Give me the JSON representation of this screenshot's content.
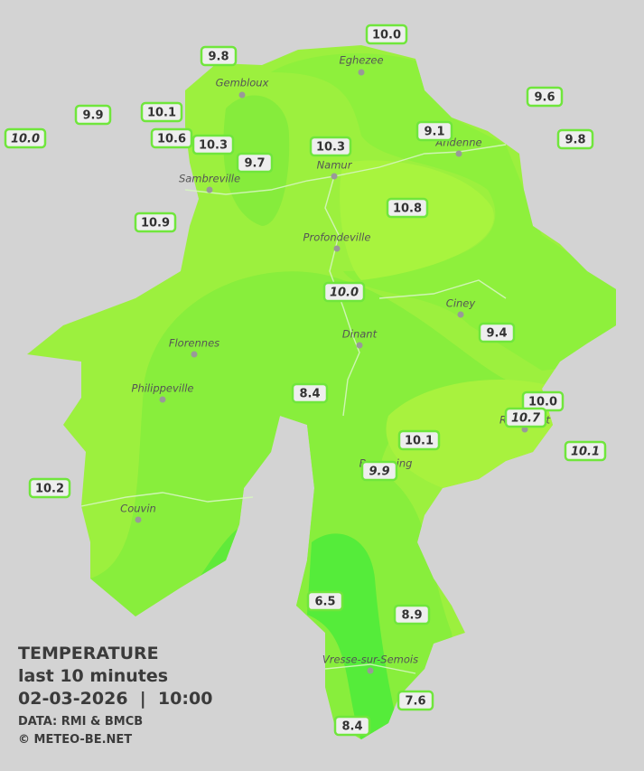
{
  "legend": {
    "title": "TEMPERATURE",
    "period": "last 10 minutes",
    "datetime": "02-03-2026  |  10:00",
    "source": "DATA: RMI & BMCB",
    "copyright": "© METEO-BE.NET"
  },
  "cities": [
    "Gembloux",
    "Eghezee",
    "Andenne",
    "Namur",
    "Sambreville",
    "Profondeville",
    "Ciney",
    "Dinant",
    "Florennes",
    "Philippeville",
    "Rochefort",
    "Beauraing",
    "Couvin",
    "Vresse-sur-Semois"
  ],
  "stations": [
    {
      "label": "9.8",
      "italic": false
    },
    {
      "label": "10.0",
      "italic": false
    },
    {
      "label": "9.9",
      "italic": false
    },
    {
      "label": "10.1",
      "italic": false
    },
    {
      "label": "10.0",
      "italic": true
    },
    {
      "label": "10.6",
      "italic": false
    },
    {
      "label": "10.3",
      "italic": false
    },
    {
      "label": "9.7",
      "italic": false
    },
    {
      "label": "10.3",
      "italic": false
    },
    {
      "label": "9.1",
      "italic": false
    },
    {
      "label": "9.6",
      "italic": false
    },
    {
      "label": "9.8",
      "italic": false
    },
    {
      "label": "10.9",
      "italic": false
    },
    {
      "label": "10.8",
      "italic": false
    },
    {
      "label": "10.0",
      "italic": true
    },
    {
      "label": "9.4",
      "italic": false
    },
    {
      "label": "8.4",
      "italic": false
    },
    {
      "label": "10.0",
      "italic": false
    },
    {
      "label": "10.7",
      "italic": true
    },
    {
      "label": "10.1",
      "italic": false
    },
    {
      "label": "10.1",
      "italic": true
    },
    {
      "label": "9.9",
      "italic": true
    },
    {
      "label": "10.2",
      "italic": false
    },
    {
      "label": "6.5",
      "italic": false
    },
    {
      "label": "8.9",
      "italic": false
    },
    {
      "label": "7.6",
      "italic": false
    },
    {
      "label": "8.4",
      "italic": false
    }
  ]
}
